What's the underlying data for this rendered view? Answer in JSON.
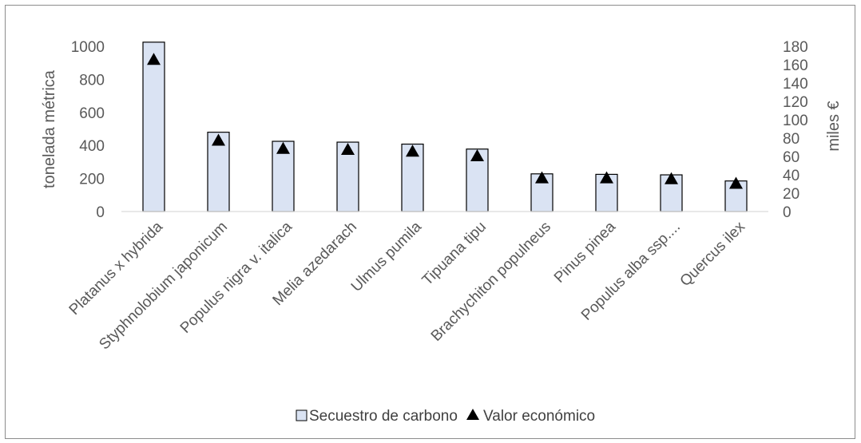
{
  "chart_data": {
    "type": "bar",
    "categories": [
      "Platanus x hybrida",
      "Styphnolobium japonicum",
      "Populus nigra v. italica",
      "Melia azedarach",
      "Ulmus pumila",
      "Tipuana tipu",
      "Brachychiton populneus",
      "Pinus pinea",
      "Populus alba ssp....",
      "Quercus ilex"
    ],
    "series": [
      {
        "name": "Secuestro de carbono",
        "kind": "bar",
        "axis": "left",
        "color": "#dae3f3",
        "values": [
          1025,
          480,
          425,
          420,
          408,
          378,
          228,
          225,
          222,
          185
        ]
      },
      {
        "name": "Valor económico",
        "kind": "marker-triangle",
        "axis": "right",
        "color": "#000000",
        "values": [
          165,
          77,
          68,
          67,
          65,
          60,
          36,
          36,
          35,
          30
        ]
      }
    ],
    "ylabel": "tonelada métrica",
    "y2label": "miles €",
    "ylim": [
      0,
      1000
    ],
    "yticks": [
      "0",
      "200",
      "400",
      "600",
      "800",
      "1000"
    ],
    "y2lim": [
      0,
      180
    ],
    "y2ticks": [
      "0",
      "20",
      "40",
      "60",
      "80",
      "100",
      "120",
      "140",
      "160",
      "180"
    ],
    "grid": false,
    "legend_position": "bottom"
  }
}
